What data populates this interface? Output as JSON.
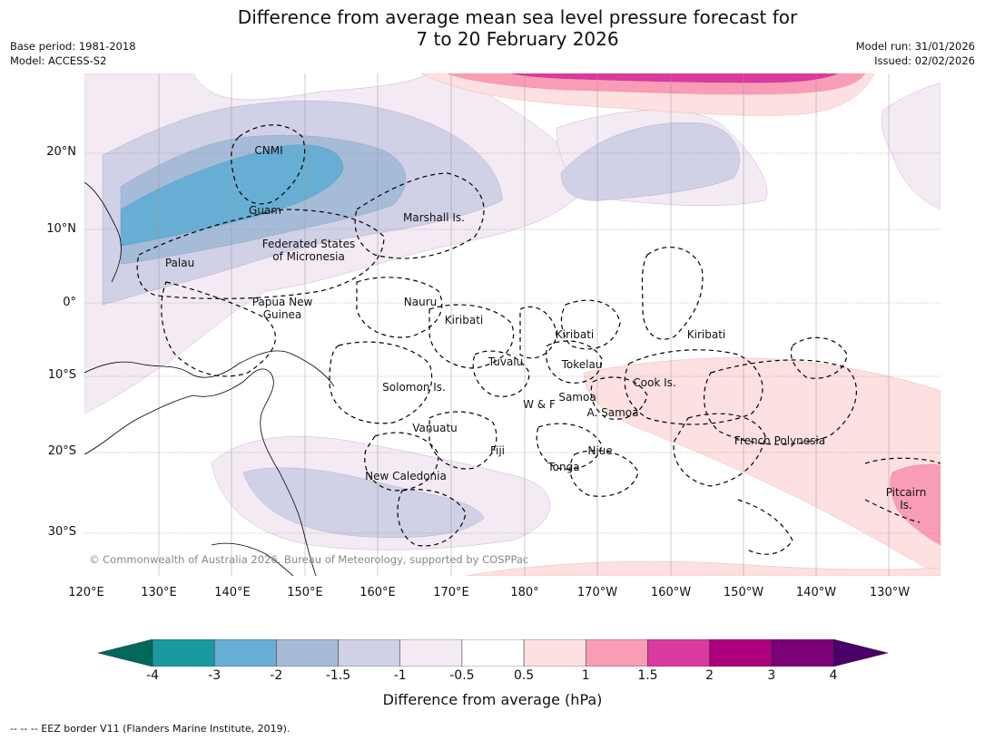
{
  "title": {
    "line1": "Difference from average mean sea level pressure forecast for",
    "line2": "7 to 20 February 2026"
  },
  "meta": {
    "base_period": "Base period: 1981-2018",
    "model": "Model: ACCESS-S2",
    "model_run": "Model run: 31/01/2026",
    "issued": "Issued: 02/02/2026"
  },
  "axes": {
    "latitudes": [
      "20°N",
      "10°N",
      "0°",
      "10°S",
      "20°S",
      "30°S"
    ],
    "longitudes": [
      "120°E",
      "130°E",
      "140°E",
      "150°E",
      "160°E",
      "170°E",
      "180°",
      "170°W",
      "160°W",
      "150°W",
      "140°W",
      "130°W"
    ]
  },
  "places": {
    "cnmi": "CNMI",
    "guam": "Guam",
    "marshall": "Marshall Is.",
    "fsm_1": "Federated States",
    "fsm_2": "of Micronesia",
    "palau": "Palau",
    "png_1": "Papua New",
    "png_2": "Guinea",
    "nauru": "Nauru",
    "kiribati_w": "Kiribati",
    "kiribati_c": "Kiribati",
    "kiribati_e": "Kiribati",
    "tuvalu": "Tuvalu",
    "tokelau": "Tokelau",
    "cook": "Cook Is.",
    "solomon": "Solomon Is.",
    "wf": "W & F",
    "samoa": "Samoa",
    "asamoa": "A. Samoa",
    "vanuatu": "Vanuatu",
    "fiji": "Fiji",
    "niue": "Niue",
    "tonga": "Tonga",
    "french_polynesia": "French Polynesia",
    "new_caledonia": "New Caledonia",
    "pitcairn_1": "Pitcairn",
    "pitcairn_2": "Is."
  },
  "copyright": "© Commonwealth of Australia 2026, Bureau of Meteorology, supported by COSPPac",
  "colorbar": {
    "label": "Difference from average (hPa)",
    "ticks": [
      "-4",
      "-3",
      "-2",
      "-1.5",
      "-1",
      "-0.5",
      "0.5",
      "1",
      "1.5",
      "2",
      "3",
      "4"
    ],
    "colors": {
      "below_min": "#00695c",
      "bins": [
        "#1a9aa0",
        "#67aed4",
        "#a6bbd8",
        "#d0d0e6",
        "#f3eaf4",
        "#ffffff",
        "#fde0e0",
        "#f99db6",
        "#db3a9e",
        "#ad017d",
        "#7a0177"
      ],
      "above_max": "#49006a"
    }
  },
  "footnote": "--  --  -- EEZ border V11 (Flanders Marine Institute, 2019)."
}
